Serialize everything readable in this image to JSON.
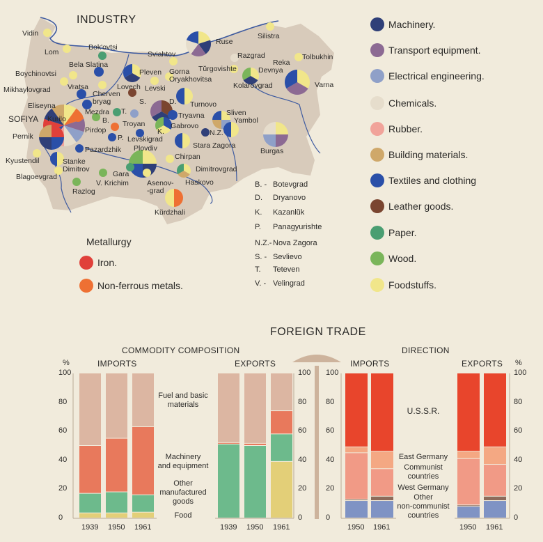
{
  "map": {
    "title": "INDUSTRY",
    "legend": [
      {
        "key": "machinery",
        "label": "Machinery.",
        "color": "#2f3f78"
      },
      {
        "key": "transport",
        "label": "Transport equipment.",
        "color": "#8c6a93"
      },
      {
        "key": "electrical",
        "label": "Electrical engineering.",
        "color": "#8fa0c8"
      },
      {
        "key": "chemicals",
        "label": "Chemicals.",
        "color": "#e6ddcc"
      },
      {
        "key": "rubber",
        "label": "Rubber.",
        "color": "#f1a39a"
      },
      {
        "key": "building",
        "label": "Building materials.",
        "color": "#cfa86a"
      },
      {
        "key": "textiles",
        "label": "Textiles and clothing",
        "color": "#2a4fa8"
      },
      {
        "key": "leather",
        "label": "Leather goods.",
        "color": "#7a4530"
      },
      {
        "key": "paper",
        "label": "Paper.",
        "color": "#4a9e72"
      },
      {
        "key": "wood",
        "label": "Wood.",
        "color": "#7ab55a"
      },
      {
        "key": "food",
        "label": "Foodstuffs.",
        "color": "#f1e68a"
      }
    ],
    "metallurgy": {
      "title": "Metallurgy",
      "items": [
        {
          "key": "iron",
          "label": "Iron.",
          "color": "#e0403a"
        },
        {
          "key": "nonferrous",
          "label": "Non-ferrous metals.",
          "color": "#ee7033"
        }
      ]
    },
    "abbreviations": [
      {
        "abbr": "B. -",
        "name": "Botevgrad"
      },
      {
        "abbr": "D.",
        "name": "Dryanovo"
      },
      {
        "abbr": "K.",
        "name": "Kazanlŭk"
      },
      {
        "abbr": "P.",
        "name": "Panagyurishte"
      },
      {
        "abbr": "N.Z.-",
        "name": "Nova Zagora"
      },
      {
        "abbr": "S. -",
        "name": "Sevlievo"
      },
      {
        "abbr": "T.",
        "name": "Teteven"
      },
      {
        "abbr": "V. -",
        "name": "Velingrad"
      }
    ],
    "cities": [
      {
        "name": "Vidin",
        "industries": [
          "food"
        ]
      },
      {
        "name": "Lom",
        "industries": [
          "food"
        ]
      },
      {
        "name": "Bok'ovtsi",
        "industries": [
          "paper"
        ]
      },
      {
        "name": "Bela Slatina",
        "industries": [
          "textiles"
        ]
      },
      {
        "name": "Boychinovtsi",
        "industries": [
          "food"
        ]
      },
      {
        "name": "Mikhaylovgrad",
        "industries": [
          "food"
        ]
      },
      {
        "name": "Vratsa",
        "industries": [
          "food"
        ]
      },
      {
        "name": "Pleven",
        "industries": [
          "food",
          "machinery",
          "textiles"
        ]
      },
      {
        "name": "Sviahtov",
        "industries": [
          "food"
        ]
      },
      {
        "name": "Gorna\nOryakhovitsa",
        "industries": [
          "food"
        ]
      },
      {
        "name": "Levski",
        "industries": [
          "food"
        ]
      },
      {
        "name": "Lovech",
        "industries": [
          "leather"
        ]
      },
      {
        "name": "Cherven\nbryag",
        "industries": [
          "textiles"
        ]
      },
      {
        "name": "Eliseyna",
        "industries": [
          "textiles"
        ]
      },
      {
        "name": "Mezdra",
        "industries": []
      },
      {
        "name": "SOFIYA",
        "industries": [
          "food",
          "nonferrous",
          "transport",
          "electrical",
          "chemicals",
          "rubber",
          "textiles",
          "iron",
          "machinery",
          "building"
        ]
      },
      {
        "name": "Kurilo",
        "industries": [
          "nonferrous"
        ]
      },
      {
        "name": "Pernik",
        "industries": [
          "iron",
          "textiles",
          "machinery",
          "building"
        ]
      },
      {
        "name": "B.",
        "industries": [
          "wood"
        ]
      },
      {
        "name": "T.",
        "industries": [
          "paper"
        ]
      },
      {
        "name": "S.",
        "industries": [
          "electrical"
        ]
      },
      {
        "name": "D.",
        "industries": [
          "leather",
          "machinery",
          "transport"
        ]
      },
      {
        "name": "Pirdop",
        "industries": []
      },
      {
        "name": "Troyan",
        "industries": [
          "nonferrous"
        ]
      },
      {
        "name": "P.",
        "industries": [
          "textiles"
        ]
      },
      {
        "name": "Levskigrad",
        "industries": [
          "textiles"
        ]
      },
      {
        "name": "Tryavna",
        "industries": [
          "textiles"
        ]
      },
      {
        "name": "Gabrovo",
        "industries": [
          "textiles",
          "food",
          "wood"
        ]
      },
      {
        "name": "K.",
        "industries": []
      },
      {
        "name": "Turnovo",
        "industries": [
          "food",
          "textiles"
        ]
      },
      {
        "name": "Ruse",
        "industries": [
          "food",
          "machinery",
          "transport",
          "chemicals",
          "textiles"
        ]
      },
      {
        "name": "Razgrad",
        "industries": [
          "chemicals"
        ]
      },
      {
        "name": "Silistra",
        "industries": [
          "food"
        ]
      },
      {
        "name": "Tolbukhin",
        "industries": [
          "food"
        ]
      },
      {
        "name": "Reka",
        "industries": []
      },
      {
        "name": "Tŭrgovishte",
        "industries": [
          "food"
        ]
      },
      {
        "name": "Devnya",
        "industries": [
          "food",
          "machinery",
          "wood"
        ]
      },
      {
        "name": "Kolarovgrad",
        "industries": []
      },
      {
        "name": "Varna",
        "industries": [
          "food",
          "transport",
          "textiles"
        ]
      },
      {
        "name": "Sliven",
        "industries": [
          "food",
          "electrical",
          "building",
          "textiles"
        ]
      },
      {
        "name": "Yambol",
        "industries": [
          "food",
          "textiles"
        ]
      },
      {
        "name": "N.Z.",
        "industries": [
          "machinery"
        ]
      },
      {
        "name": "Stara Zagora",
        "industries": [
          "food",
          "textiles"
        ]
      },
      {
        "name": "Burgas",
        "industries": [
          "food",
          "transport",
          "electrical",
          "chemicals"
        ]
      },
      {
        "name": "Chirpan",
        "industries": [
          "food"
        ]
      },
      {
        "name": "Haskovo",
        "industries": [
          "food",
          "building",
          "paper"
        ]
      },
      {
        "name": "Dimitrovgrad",
        "industries": []
      },
      {
        "name": "Plovdiv",
        "industries": [
          "food",
          "machinery",
          "textiles",
          "wood"
        ]
      },
      {
        "name": "Pazardzhik",
        "industries": [
          "textiles"
        ]
      },
      {
        "name": "Stanke\nDimitrov",
        "industries": [
          "food",
          "textiles"
        ]
      },
      {
        "name": "Kyustendil",
        "industries": [
          "food"
        ]
      },
      {
        "name": "Blagoevgrad",
        "industries": [
          "food"
        ]
      },
      {
        "name": "Gara",
        "industries": [
          "paper"
        ]
      },
      {
        "name": "V. Krichim",
        "industries": [
          "wood"
        ]
      },
      {
        "name": "Razlog",
        "industries": [
          "wood"
        ]
      },
      {
        "name": "Asenov-\n-grad",
        "industries": [
          "food"
        ]
      },
      {
        "name": "Kŭrdzhali",
        "industries": [
          "nonferrous",
          "food"
        ]
      }
    ]
  },
  "trade": {
    "title": "FOREIGN TRADE",
    "composition_title": "COMMODITY COMPOSITION",
    "direction_title": "DIRECTION",
    "imports_label": "IMPORTS",
    "exports_label": "EXPORTS",
    "percent_sign": "%",
    "composition_series_labels": [
      "Fuel and basic\nmaterials",
      "Machinery\nand equipment",
      "Other\nmanufactured\ngoods",
      "Food"
    ],
    "direction_series_labels": [
      "U.S.S.R.",
      "East Germany",
      "Communist\ncountries",
      "West Germany",
      "Other\nnon-communist\ncountries"
    ]
  },
  "chart_data": [
    {
      "type": "bar",
      "stacked": true,
      "title": "COMMODITY COMPOSITION",
      "subtitle": "IMPORTS",
      "ylabel": "%",
      "ylim": [
        0,
        100
      ],
      "yticks": [
        0,
        20,
        40,
        60,
        80,
        100
      ],
      "categories": [
        "1939",
        "1950",
        "1961"
      ],
      "series": [
        {
          "name": "Food",
          "color": "#e3cf78",
          "values": [
            3.5,
            3.5,
            4
          ]
        },
        {
          "name": "Other manufactured goods",
          "color": "#6dba8c",
          "values": [
            13.5,
            14.5,
            12
          ]
        },
        {
          "name": "Machinery and equipment",
          "color": "#e8795c",
          "values": [
            33,
            37,
            47
          ]
        },
        {
          "name": "Fuel and basic materials",
          "color": "#dcb6a2",
          "values": [
            50,
            45,
            37
          ]
        }
      ]
    },
    {
      "type": "bar",
      "stacked": true,
      "title": "COMMODITY COMPOSITION",
      "subtitle": "EXPORTS",
      "ylim": [
        0,
        100
      ],
      "yticks": [
        0,
        20,
        40,
        60,
        80,
        100
      ],
      "categories": [
        "1939",
        "1950",
        "1961"
      ],
      "series": [
        {
          "name": "Food",
          "color": "#e3cf78",
          "values": [
            0,
            0,
            39
          ]
        },
        {
          "name": "Other manufactured goods",
          "color": "#6dba8c",
          "values": [
            51,
            50,
            19
          ]
        },
        {
          "name": "Machinery and equipment",
          "color": "#e8795c",
          "values": [
            1,
            1.5,
            16
          ]
        },
        {
          "name": "Fuel and basic materials",
          "color": "#dcb6a2",
          "values": [
            48,
            48.5,
            26
          ]
        }
      ]
    },
    {
      "type": "bar",
      "stacked": true,
      "title": "DIRECTION",
      "subtitle": "IMPORTS",
      "ylim": [
        0,
        100
      ],
      "yticks": [
        0,
        20,
        40,
        60,
        80,
        100
      ],
      "categories": [
        "1950",
        "1961"
      ],
      "series": [
        {
          "name": "Other non-communist countries",
          "color": "#7f93c4",
          "values": [
            12,
            12
          ]
        },
        {
          "name": "West Germany",
          "color": "#8d6b5b",
          "values": [
            1,
            3
          ]
        },
        {
          "name": "Communist countries",
          "color": "#f19a86",
          "values": [
            32,
            19
          ]
        },
        {
          "name": "East Germany",
          "color": "#f4a883",
          "values": [
            4,
            12
          ]
        },
        {
          "name": "U.S.S.R.",
          "color": "#e8452c",
          "values": [
            51,
            54
          ]
        }
      ]
    },
    {
      "type": "bar",
      "stacked": true,
      "title": "DIRECTION",
      "subtitle": "EXPORTS",
      "ylabel": "%",
      "ylim": [
        0,
        100
      ],
      "yticks": [
        0,
        20,
        40,
        60,
        80,
        100
      ],
      "categories": [
        "1950",
        "1961"
      ],
      "series": [
        {
          "name": "Other non-communist countries",
          "color": "#7f93c4",
          "values": [
            8,
            12
          ]
        },
        {
          "name": "West Germany",
          "color": "#8d6b5b",
          "values": [
            1,
            3
          ]
        },
        {
          "name": "Communist countries",
          "color": "#f19a86",
          "values": [
            32,
            22
          ]
        },
        {
          "name": "East Germany",
          "color": "#f4a883",
          "values": [
            5,
            12
          ]
        },
        {
          "name": "U.S.S.R.",
          "color": "#e8452c",
          "values": [
            54,
            51
          ]
        }
      ]
    }
  ]
}
